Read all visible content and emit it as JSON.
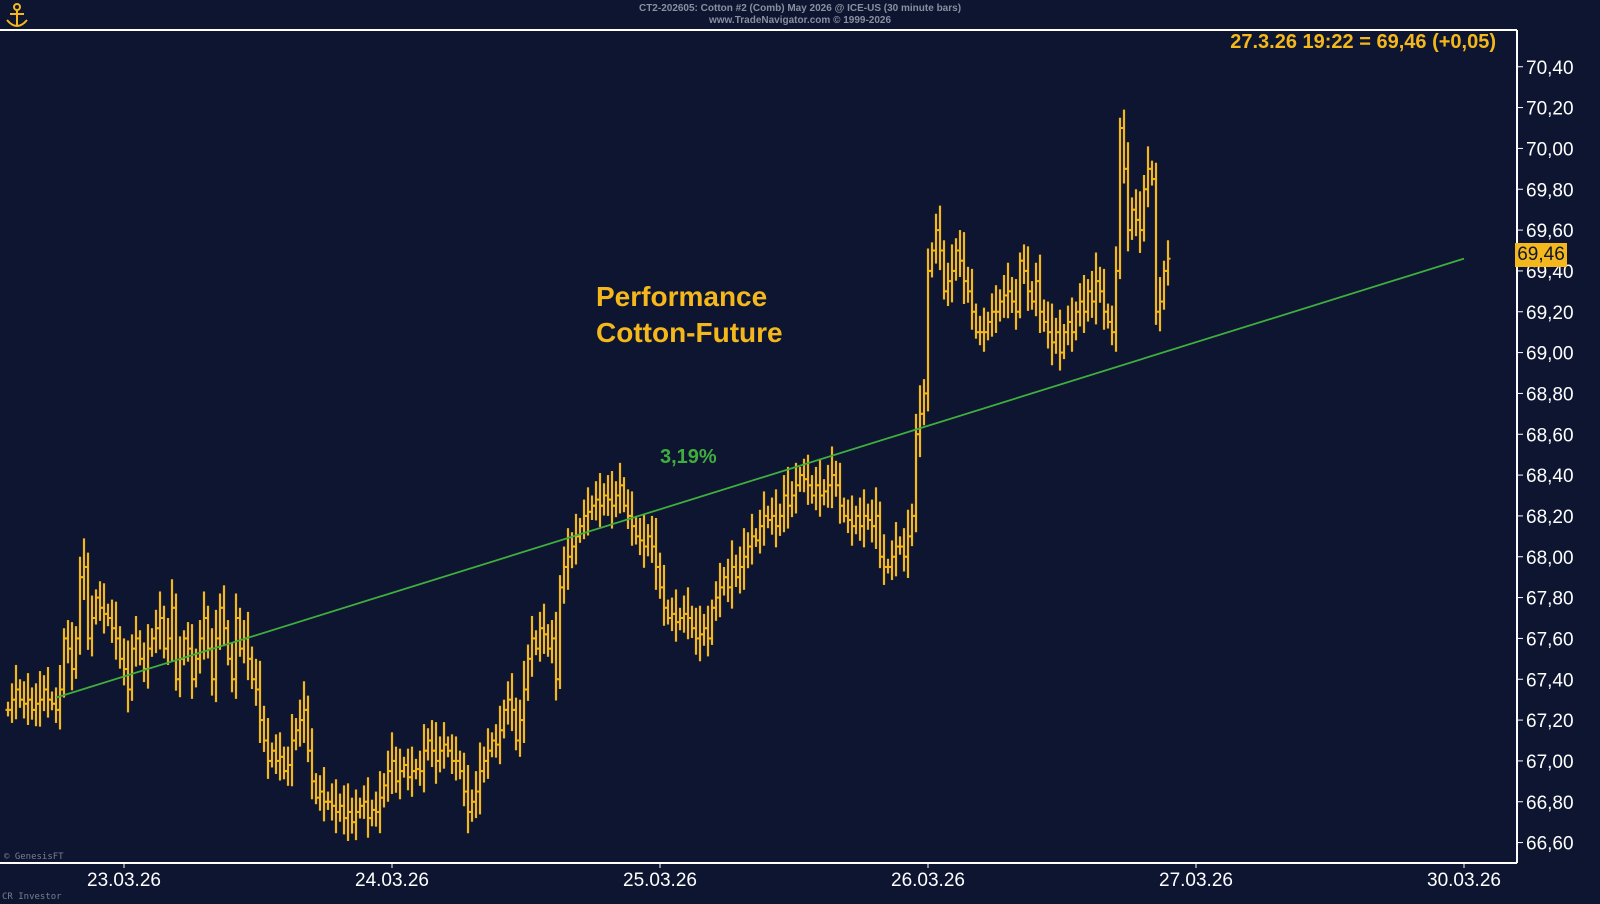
{
  "header": {
    "line1": "CT2-202605: Cotton #2 (Comb) May 2026 @ ICE-US (30 minute bars)",
    "line2": "www.TradeNavigator.com © 1999-2026"
  },
  "readout": "27.3.26 19:22 = 69,46 (+0,05)",
  "annotation": {
    "line1": "Performance",
    "line2": "Cotton-Future",
    "pct": "3,19%"
  },
  "last_price_label": "69,46",
  "credits": {
    "genesis": "© GenesisFT",
    "cr": "CR Investor"
  },
  "colors": {
    "background": "#0d1530",
    "bars": "#f5b81c",
    "trendline": "#3fae3f",
    "axis": "#ffffff"
  },
  "chart_data": {
    "type": "ohlc_bar",
    "title": "CT2-202605: Cotton #2 (Comb) May 2026 @ ICE-US (30 minute bars)",
    "ylim": [
      66.5,
      70.58
    ],
    "y_ticks": [
      "70,40",
      "70,20",
      "70,00",
      "69,80",
      "69,60",
      "69,40",
      "69,20",
      "69,00",
      "68,80",
      "68,60",
      "68,40",
      "68,20",
      "68,00",
      "67,80",
      "67,60",
      "67,40",
      "67,20",
      "67,00",
      "66,80",
      "66,60"
    ],
    "y_tick_values": [
      70.4,
      70.2,
      70.0,
      69.8,
      69.6,
      69.4,
      69.2,
      69.0,
      68.8,
      68.6,
      68.4,
      68.2,
      68.0,
      67.8,
      67.6,
      67.4,
      67.2,
      67.0,
      66.8,
      66.6
    ],
    "x_ticks": [
      "23.03.26",
      "24.03.26",
      "25.03.26",
      "26.03.26",
      "27.03.26",
      "30.03.26"
    ],
    "x_tick_bar_index": [
      29,
      96,
      163,
      230,
      297,
      364
    ],
    "closes": [
      67.25,
      67.3,
      67.35,
      67.3,
      67.28,
      67.3,
      67.25,
      67.28,
      67.3,
      67.35,
      67.3,
      67.28,
      67.25,
      67.35,
      67.6,
      67.55,
      67.45,
      67.6,
      67.9,
      67.95,
      67.6,
      67.7,
      67.8,
      67.75,
      67.72,
      67.7,
      67.65,
      67.6,
      67.5,
      67.45,
      67.35,
      67.55,
      67.6,
      67.5,
      67.45,
      67.55,
      67.6,
      67.65,
      67.7,
      67.55,
      67.6,
      67.75,
      67.4,
      67.5,
      67.6,
      67.55,
      67.4,
      67.5,
      67.6,
      67.7,
      67.55,
      67.4,
      67.6,
      67.75,
      67.65,
      67.5,
      67.4,
      67.7,
      67.55,
      67.6,
      67.5,
      67.4,
      67.35,
      67.2,
      67.1,
      67.0,
      67.05,
      67.0,
      67.02,
      66.95,
      66.98,
      67.1,
      67.15,
      67.2,
      67.25,
      67.05,
      66.9,
      66.82,
      66.85,
      66.8,
      66.8,
      66.78,
      66.75,
      66.78,
      66.72,
      66.75,
      66.7,
      66.75,
      66.78,
      66.8,
      66.72,
      66.76,
      66.75,
      66.82,
      66.88,
      66.95,
      67.0,
      66.9,
      66.95,
      66.98,
      66.92,
      66.95,
      66.96,
      66.95,
      67.05,
      67.1,
      67.05,
      67.0,
      67.05,
      67.08,
      67.05,
      67.0,
      67.0,
      66.95,
      66.85,
      66.75,
      66.8,
      66.85,
      66.95,
      67.0,
      67.05,
      67.1,
      67.08,
      67.15,
      67.25,
      67.3,
      67.25,
      67.1,
      67.2,
      67.35,
      67.5,
      67.6,
      67.55,
      67.65,
      67.62,
      67.55,
      67.6,
      67.4,
      67.85,
      67.95,
      68.0,
      68.05,
      68.1,
      68.15,
      68.2,
      68.22,
      68.25,
      68.28,
      68.25,
      68.3,
      68.28,
      68.25,
      68.3,
      68.35,
      68.25,
      68.2,
      68.15,
      68.1,
      68.08,
      68.05,
      68.1,
      68.05,
      67.95,
      67.85,
      67.75,
      67.7,
      67.72,
      67.68,
      67.7,
      67.72,
      67.7,
      67.65,
      67.6,
      67.62,
      67.65,
      67.6,
      67.75,
      67.8,
      67.85,
      67.9,
      67.85,
      67.95,
      67.9,
      67.95,
      68.0,
      68.05,
      68.1,
      68.08,
      68.15,
      68.2,
      68.18,
      68.2,
      68.15,
      68.2,
      68.3,
      68.25,
      68.3,
      68.35,
      68.4,
      68.38,
      68.35,
      68.3,
      68.35,
      68.3,
      68.32,
      68.35,
      68.4,
      68.35,
      68.25,
      68.2,
      68.18,
      68.15,
      68.2,
      68.15,
      68.2,
      68.18,
      68.15,
      68.2,
      68.0,
      67.95,
      67.95,
      68.0,
      68.05,
      68.05,
      68.0,
      68.1,
      68.2,
      68.6,
      68.7,
      68.8,
      69.4,
      69.5,
      69.6,
      69.5,
      69.3,
      69.35,
      69.4,
      69.5,
      69.45,
      69.35,
      69.3,
      69.2,
      69.1,
      69.1,
      69.1,
      69.15,
      69.2,
      69.2,
      69.25,
      69.28,
      69.3,
      69.25,
      69.2,
      69.45,
      69.4,
      69.3,
      69.25,
      69.35,
      69.2,
      69.15,
      69.1,
      69.05,
      69.1,
      69.0,
      69.1,
      69.15,
      69.1,
      69.2,
      69.25,
      69.2,
      69.3,
      69.25,
      69.35,
      69.3,
      69.2,
      69.15,
      69.1,
      69.4,
      70.1,
      69.9,
      69.6,
      69.7,
      69.65,
      69.6,
      69.8,
      69.9,
      69.85,
      69.2,
      69.25,
      69.4,
      69.46
    ],
    "trendline": {
      "from": {
        "bar_index": 12,
        "price": 67.31
      },
      "to": {
        "bar_index": 364,
        "price": 69.46
      },
      "label": "3,19%"
    }
  }
}
